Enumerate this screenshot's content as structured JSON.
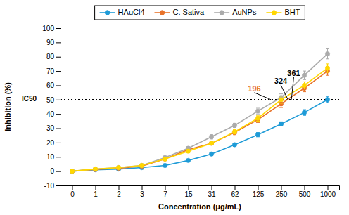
{
  "chart_data": {
    "type": "line",
    "categories": [
      "0",
      "1",
      "2",
      "3",
      "7",
      "15",
      "31",
      "62",
      "125",
      "250",
      "500",
      "1000"
    ],
    "series": [
      {
        "name": "HAuCl4",
        "color": "#1E9BD7",
        "marker": "circle",
        "values": [
          0,
          1.0,
          1.5,
          2.5,
          4.0,
          7.5,
          12.0,
          18.5,
          25.5,
          33.0,
          41.0,
          50.0
        ],
        "errors": [
          0.3,
          0.5,
          0.5,
          0.5,
          0.5,
          0.8,
          1.0,
          1.2,
          1.5,
          1.5,
          2.0,
          2.0
        ]
      },
      {
        "name": "C. Sativa",
        "color": "#E8732A",
        "marker": "circle",
        "values": [
          0,
          1.2,
          2.0,
          3.5,
          8.5,
          15.0,
          19.5,
          27.0,
          36.0,
          47.0,
          58.0,
          70.0
        ],
        "errors": [
          0.3,
          0.5,
          0.5,
          0.5,
          0.8,
          1.0,
          1.2,
          1.5,
          2.0,
          2.5,
          2.5,
          3.0
        ]
      },
      {
        "name": "AuNPs",
        "color": "#ABABAB",
        "marker": "circle",
        "values": [
          0,
          1.5,
          2.5,
          4.0,
          9.5,
          16.0,
          24.0,
          32.0,
          42.0,
          51.5,
          67.0,
          82.0
        ],
        "errors": [
          0.3,
          0.5,
          0.5,
          0.5,
          0.8,
          1.0,
          1.5,
          1.5,
          2.0,
          2.5,
          3.0,
          3.5
        ]
      },
      {
        "name": "BHT",
        "color": "#FFD700",
        "marker": "circle",
        "values": [
          0,
          1.5,
          2.5,
          4.0,
          8.5,
          14.0,
          19.5,
          27.5,
          37.0,
          50.0,
          60.0,
          72.0
        ],
        "errors": [
          0.3,
          0.5,
          0.5,
          0.5,
          0.8,
          1.0,
          1.2,
          1.5,
          2.0,
          2.5,
          2.5,
          3.0
        ]
      }
    ],
    "xlabel": "Concentration (μg/mL)",
    "ylabel": "Inhibition (%)",
    "ylim": [
      -10,
      100
    ],
    "yticks": [
      -10,
      0,
      10,
      20,
      30,
      40,
      50,
      60,
      70,
      80,
      90,
      100
    ],
    "grid": false,
    "legend": "top",
    "hlines": [
      {
        "value": 50,
        "label": "IC50",
        "line_style": "dotted"
      }
    ],
    "annotations": [
      {
        "text": "196",
        "x": 196,
        "y": 50,
        "color": "#E8732A"
      },
      {
        "text": "324",
        "x": 324,
        "y": 50,
        "color": "#000000"
      },
      {
        "text": "361",
        "x": 361,
        "y": 50,
        "color": "#000000"
      }
    ]
  }
}
